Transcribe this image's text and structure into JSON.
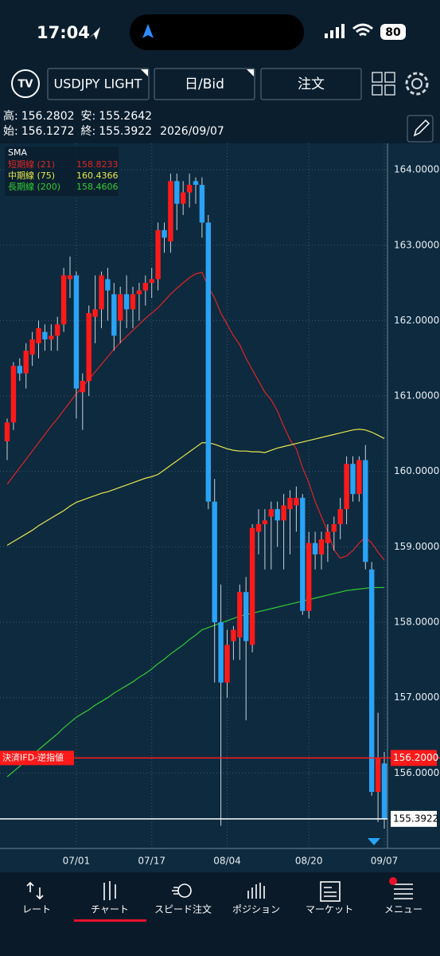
{
  "status_bar": {
    "time": "17:04",
    "battery": "80"
  },
  "toolbar": {
    "symbol": "USDJPY LIGHT",
    "timeframe": "日/Bid",
    "order": "注文"
  },
  "info": {
    "high_label": "高:",
    "low_label": "安:",
    "open_label": "始:",
    "close_label": "終:",
    "date": "2026/09/07"
  },
  "chart_data": {
    "type": "candlestick",
    "categories": [
      null,
      null,
      null,
      null,
      null,
      null,
      null,
      null,
      null,
      null,
      null,
      "07/01",
      null,
      null,
      null,
      null,
      null,
      null,
      null,
      null,
      null,
      null,
      null,
      "07/17",
      null,
      null,
      null,
      null,
      null,
      null,
      null,
      null,
      null,
      null,
      null,
      "08/04",
      null,
      null,
      null,
      null,
      null,
      null,
      null,
      null,
      null,
      null,
      null,
      null,
      "08/20",
      null,
      null,
      null,
      null,
      null,
      null,
      null,
      null,
      null,
      null,
      null,
      "09/07"
    ],
    "ohlc": [
      [
        160.4,
        160.7,
        160.15,
        160.65
      ],
      [
        160.65,
        161.45,
        160.55,
        161.4
      ],
      [
        161.4,
        161.5,
        161.2,
        161.3
      ],
      [
        161.3,
        161.7,
        161.1,
        161.6
      ],
      [
        161.55,
        161.85,
        161.4,
        161.75
      ],
      [
        161.7,
        162.0,
        161.5,
        161.9
      ],
      [
        161.85,
        161.95,
        161.6,
        161.75
      ],
      [
        161.75,
        161.95,
        161.6,
        161.8
      ],
      [
        161.8,
        162.05,
        161.6,
        161.95
      ],
      [
        161.95,
        162.7,
        161.85,
        162.6
      ],
      [
        162.55,
        162.85,
        162.3,
        162.6
      ],
      [
        162.6,
        162.65,
        160.7,
        161.1
      ],
      [
        161.05,
        161.3,
        160.55,
        161.2
      ],
      [
        161.2,
        162.2,
        161.0,
        162.1
      ],
      [
        162.05,
        162.6,
        161.7,
        162.15
      ],
      [
        162.15,
        162.65,
        161.9,
        162.6
      ],
      [
        162.55,
        162.7,
        162.0,
        162.4
      ],
      [
        162.35,
        162.5,
        161.6,
        161.8
      ],
      [
        162.0,
        162.45,
        161.7,
        162.35
      ],
      [
        162.35,
        162.6,
        161.9,
        162.15
      ],
      [
        162.15,
        162.45,
        161.9,
        162.35
      ],
      [
        162.35,
        162.5,
        162.0,
        162.4
      ],
      [
        162.4,
        162.6,
        162.2,
        162.5
      ],
      [
        162.5,
        162.7,
        162.3,
        162.55
      ],
      [
        162.55,
        163.3,
        162.4,
        163.2
      ],
      [
        163.2,
        163.3,
        162.9,
        163.1
      ],
      [
        163.05,
        163.95,
        162.9,
        163.85
      ],
      [
        163.85,
        163.95,
        163.2,
        163.55
      ],
      [
        163.55,
        163.85,
        163.4,
        163.7
      ],
      [
        163.7,
        163.95,
        163.5,
        163.8
      ],
      [
        163.85,
        163.9,
        163.55,
        163.8
      ],
      [
        163.8,
        163.9,
        163.1,
        163.3
      ],
      [
        163.3,
        163.4,
        159.5,
        159.6
      ],
      [
        159.6,
        159.9,
        157.2,
        158.0
      ],
      [
        158.0,
        158.5,
        155.3,
        157.2
      ],
      [
        157.2,
        157.9,
        157.0,
        157.7
      ],
      [
        157.75,
        157.95,
        157.5,
        157.9
      ],
      [
        157.8,
        158.5,
        157.5,
        158.4
      ],
      [
        158.4,
        158.6,
        156.7,
        157.75
      ],
      [
        157.7,
        159.3,
        157.6,
        159.25
      ],
      [
        159.2,
        159.5,
        158.9,
        159.3
      ],
      [
        159.3,
        159.5,
        158.7,
        159.35
      ],
      [
        159.4,
        159.6,
        158.7,
        159.5
      ],
      [
        159.5,
        159.6,
        159.0,
        159.35
      ],
      [
        159.35,
        159.7,
        158.7,
        159.55
      ],
      [
        159.5,
        159.75,
        158.9,
        159.65
      ],
      [
        159.55,
        159.8,
        159.2,
        159.65
      ],
      [
        159.65,
        159.7,
        158.1,
        158.15
      ],
      [
        158.15,
        159.2,
        158.05,
        159.05
      ],
      [
        159.05,
        159.2,
        158.7,
        158.9
      ],
      [
        158.9,
        159.2,
        158.7,
        159.1
      ],
      [
        159.05,
        159.3,
        158.8,
        159.2
      ],
      [
        159.2,
        159.4,
        158.95,
        159.3
      ],
      [
        159.3,
        159.65,
        159.1,
        159.5
      ],
      [
        159.5,
        160.2,
        159.3,
        160.1
      ],
      [
        160.1,
        160.2,
        159.6,
        159.7
      ],
      [
        159.7,
        160.2,
        159.6,
        160.15
      ],
      [
        160.15,
        160.35,
        158.7,
        158.8
      ],
      [
        158.7,
        158.8,
        155.7,
        155.75
      ],
      [
        155.75,
        156.8,
        155.35,
        156.2
      ],
      [
        156.1272,
        156.2802,
        155.2642,
        155.3922
      ]
    ],
    "up_color": "#ff1a1a",
    "down_color": "#2aa3f5",
    "ylim": [
      155.0,
      164.35
    ],
    "yticks": [
      {
        "value": 156,
        "label": "156.0000"
      },
      {
        "value": 157,
        "label": "157.0000"
      },
      {
        "value": 158,
        "label": "158.0000"
      },
      {
        "value": 159,
        "label": "159.0000"
      },
      {
        "value": 160,
        "label": "160.0000"
      },
      {
        "value": 161,
        "label": "161.0000"
      },
      {
        "value": 162,
        "label": "162.0000"
      },
      {
        "value": 163,
        "label": "163.0000"
      },
      {
        "value": 164,
        "label": "164.0000"
      }
    ],
    "grid": true,
    "legend_title": "SMA",
    "series": [
      {
        "name": "短期線 (21)",
        "color": "#e02424",
        "values": [
          159.83,
          159.94,
          160.05,
          160.16,
          160.27,
          160.38,
          160.49,
          160.6,
          160.7,
          160.81,
          160.92,
          161.03,
          161.12,
          161.22,
          161.32,
          161.42,
          161.52,
          161.62,
          161.71,
          161.79,
          161.87,
          161.95,
          162.03,
          162.1,
          162.17,
          162.26,
          162.35,
          162.43,
          162.5,
          162.57,
          162.62,
          162.64,
          162.45,
          162.3,
          162.1,
          161.95,
          161.8,
          161.68,
          161.5,
          161.35,
          161.2,
          161.05,
          160.95,
          160.8,
          160.6,
          160.42,
          160.3,
          160.05,
          159.85,
          159.6,
          159.4,
          159.2,
          158.96,
          158.85,
          158.88,
          158.95,
          159.05,
          159.13,
          159.05,
          158.93,
          158.8233
        ]
      },
      {
        "name": "中期線 (75)",
        "color": "#e6e64a",
        "values": [
          159.02,
          159.07,
          159.12,
          159.17,
          159.22,
          159.28,
          159.33,
          159.38,
          159.43,
          159.48,
          159.54,
          159.59,
          159.62,
          159.65,
          159.68,
          159.71,
          159.73,
          159.76,
          159.79,
          159.82,
          159.85,
          159.88,
          159.91,
          159.93,
          159.96,
          160.02,
          160.08,
          160.14,
          160.2,
          160.26,
          160.32,
          160.38,
          160.38,
          160.36,
          160.33,
          160.3,
          160.28,
          160.27,
          160.27,
          160.26,
          160.26,
          160.25,
          160.28,
          160.31,
          160.33,
          160.35,
          160.37,
          160.39,
          160.41,
          160.43,
          160.45,
          160.47,
          160.49,
          160.51,
          160.53,
          160.55,
          160.56,
          160.55,
          160.52,
          160.48,
          160.4366
        ]
      },
      {
        "name": "長期線 (200)",
        "color": "#33cc33",
        "values": [
          155.95,
          156.02,
          156.09,
          156.17,
          156.24,
          156.31,
          156.38,
          156.45,
          156.52,
          156.6,
          156.67,
          156.74,
          156.79,
          156.84,
          156.9,
          156.95,
          157.0,
          157.06,
          157.11,
          157.16,
          157.21,
          157.27,
          157.32,
          157.38,
          157.45,
          157.51,
          157.58,
          157.64,
          157.7,
          157.77,
          157.83,
          157.9,
          157.93,
          157.96,
          157.99,
          158.02,
          158.05,
          158.08,
          158.1,
          158.12,
          158.14,
          158.16,
          158.18,
          158.2,
          158.22,
          158.24,
          158.26,
          158.28,
          158.3,
          158.32,
          158.34,
          158.36,
          158.38,
          158.4,
          158.42,
          158.43,
          158.44,
          158.45,
          158.46,
          158.46,
          158.4606
        ]
      }
    ],
    "reference_lines": [
      {
        "name": "決済IFD-逆指値",
        "value": 156.2,
        "label": "156.2000",
        "color": "#ff1a1a"
      }
    ]
  },
  "nav": [
    "レート",
    "チャート",
    "スピード注文",
    "ポジション",
    "マーケット",
    "メニュー"
  ]
}
